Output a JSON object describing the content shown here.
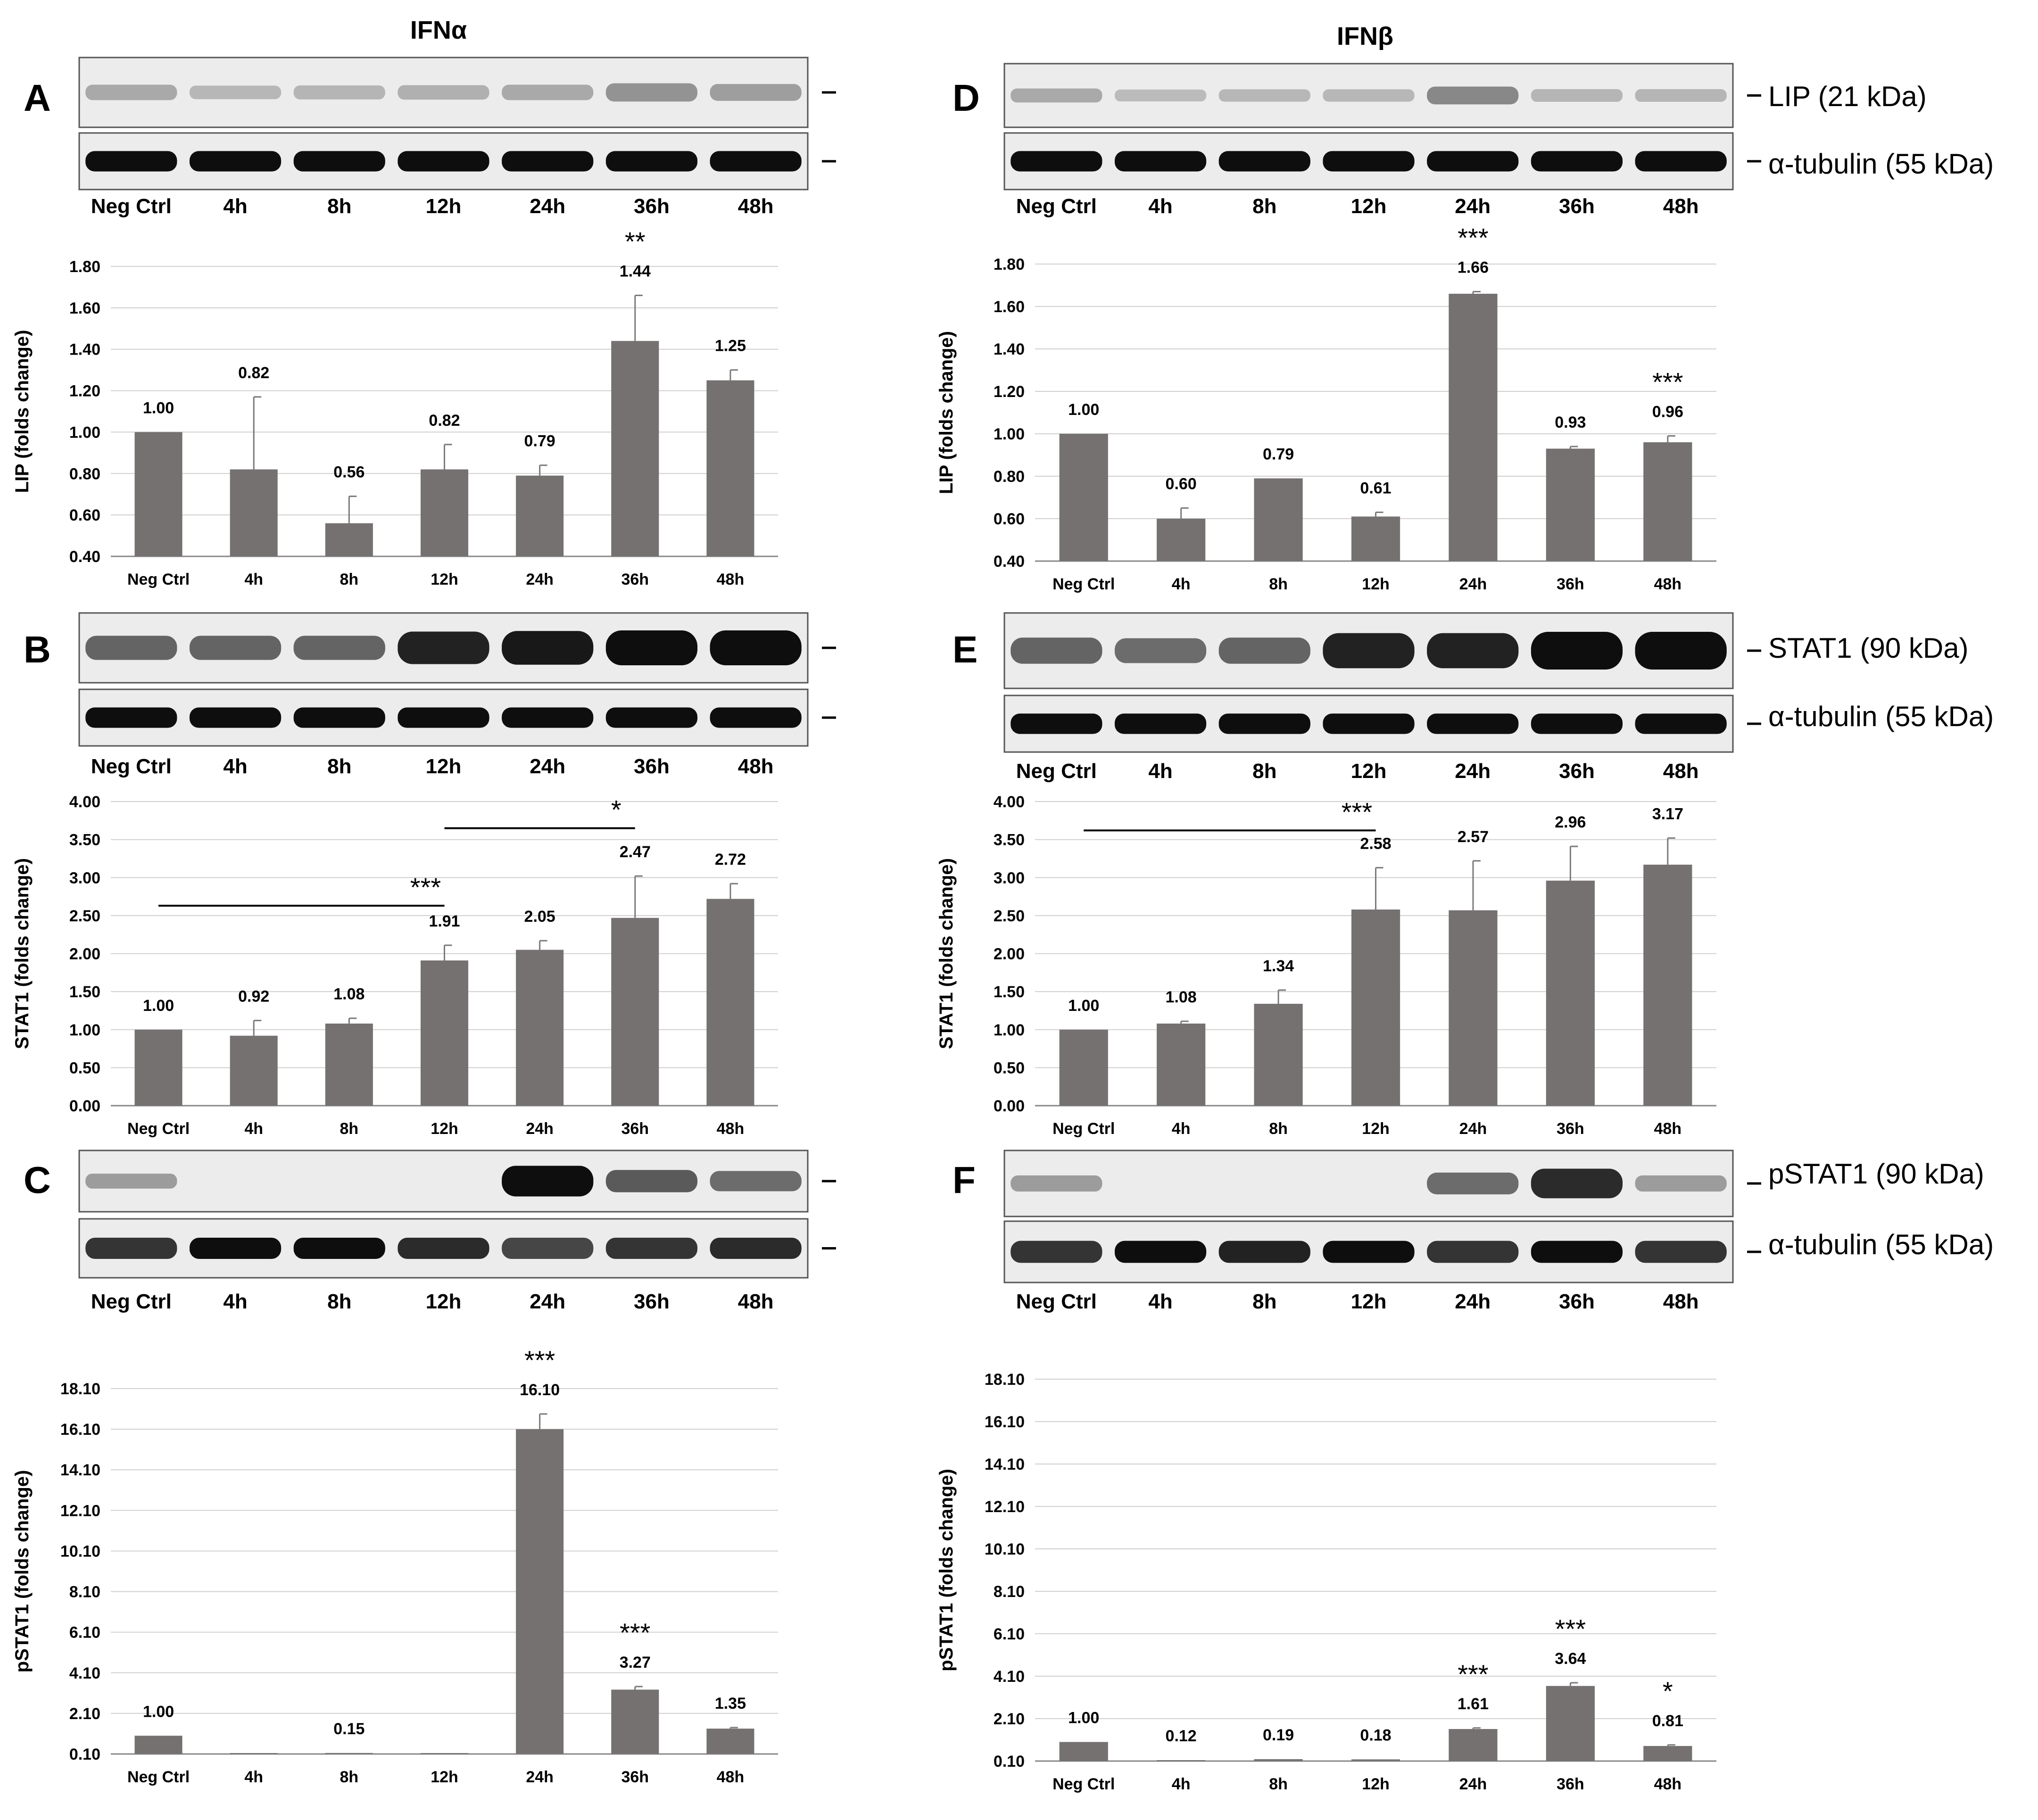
{
  "columns": [
    {
      "title": "IFNα",
      "panels": [
        "A",
        "B",
        "C"
      ]
    },
    {
      "title": "IFNβ",
      "panels": [
        "D",
        "E",
        "F"
      ]
    }
  ],
  "lane_labels": [
    "Neg Ctrl",
    "4h",
    "8h",
    "12h",
    "24h",
    "36h",
    "48h"
  ],
  "blot_labels": {
    "lip": "LIP (21 kDa)",
    "stat1": "STAT1 (90 kDa)",
    "pstat1": "pSTAT1 (90 kDa)",
    "tubulin": "α-tubulin (55 kDa)"
  },
  "colors": {
    "bar": "#757171",
    "blot_bg": "#ececec",
    "band": "#0e0e0e",
    "axis": "#888888"
  },
  "icons": [
    "marker-dash-icon"
  ],
  "chart_data": [
    {
      "panel": "A",
      "type": "bar",
      "ylabel": "LIP (folds change)",
      "categories": [
        "Neg Ctrl",
        "4h",
        "8h",
        "12h",
        "24h",
        "36h",
        "48h"
      ],
      "values": [
        1.0,
        0.82,
        0.56,
        0.82,
        0.79,
        1.44,
        1.25
      ],
      "errors": [
        0,
        0.35,
        0.13,
        0.12,
        0.05,
        0.22,
        0.05
      ],
      "value_labels": [
        "1.00",
        "0.82",
        "0.56",
        "0.82",
        "0.79",
        "1.44",
        "1.25"
      ],
      "ylim": [
        0.4,
        1.8
      ],
      "yticks": [
        "0.40",
        "0.60",
        "0.80",
        "1.00",
        "1.20",
        "1.40",
        "1.60",
        "1.80"
      ],
      "significance": [
        {
          "category": "36h",
          "label": "**"
        }
      ],
      "brackets": []
    },
    {
      "panel": "B",
      "type": "bar",
      "ylabel": "STAT1 (folds change)",
      "categories": [
        "Neg Ctrl",
        "4h",
        "8h",
        "12h",
        "24h",
        "36h",
        "48h"
      ],
      "values": [
        1.0,
        0.92,
        1.08,
        1.91,
        2.05,
        2.47,
        2.72
      ],
      "errors": [
        0,
        0.2,
        0.07,
        0.2,
        0.12,
        0.55,
        0.2
      ],
      "value_labels": [
        "1.00",
        "0.92",
        "1.08",
        "1.91",
        "2.05",
        "2.47",
        "2.72"
      ],
      "ylim": [
        0.0,
        4.0
      ],
      "yticks": [
        "0.00",
        "0.50",
        "1.00",
        "1.50",
        "2.00",
        "2.50",
        "3.00",
        "3.50",
        "4.00"
      ],
      "significance": [],
      "brackets": [
        {
          "from": "Neg Ctrl",
          "to": "12h",
          "y": 2.63,
          "label": "***"
        },
        {
          "from": "12h",
          "to": "36h",
          "y": 3.65,
          "label": "*"
        }
      ]
    },
    {
      "panel": "C",
      "type": "bar",
      "ylabel": "pSTAT1 (folds change)",
      "categories": [
        "Neg Ctrl",
        "4h",
        "8h",
        "12h",
        "24h",
        "36h",
        "48h"
      ],
      "values": [
        1.0,
        0.02,
        0.15,
        0.02,
        16.1,
        3.27,
        1.35
      ],
      "errors": [
        0,
        0,
        0,
        0,
        0.75,
        0.15,
        0.05
      ],
      "value_labels": [
        "1.00",
        "",
        "0.15",
        "",
        "16.10",
        "3.27",
        "1.35"
      ],
      "ylim": [
        0.1,
        18.1
      ],
      "yticks": [
        "0.10",
        "2.10",
        "4.10",
        "6.10",
        "8.10",
        "10.10",
        "12.10",
        "14.10",
        "16.10",
        "18.10"
      ],
      "significance": [
        {
          "category": "24h",
          "label": "***"
        },
        {
          "category": "36h",
          "label": "***"
        }
      ],
      "brackets": []
    },
    {
      "panel": "D",
      "type": "bar",
      "ylabel": "LIP (folds change)",
      "categories": [
        "Neg Ctrl",
        "4h",
        "8h",
        "12h",
        "24h",
        "36h",
        "48h"
      ],
      "values": [
        1.0,
        0.6,
        0.79,
        0.61,
        1.66,
        0.93,
        0.96
      ],
      "errors": [
        0,
        0.05,
        0,
        0.02,
        0.01,
        0.01,
        0.03
      ],
      "value_labels": [
        "1.00",
        "0.60",
        "0.79",
        "0.61",
        "1.66",
        "0.93",
        "0.96"
      ],
      "ylim": [
        0.4,
        1.8
      ],
      "yticks": [
        "0.40",
        "0.60",
        "0.80",
        "1.00",
        "1.20",
        "1.40",
        "1.60",
        "1.80"
      ],
      "significance": [
        {
          "category": "24h",
          "label": "***"
        },
        {
          "category": "48h",
          "label": "***"
        }
      ],
      "brackets": []
    },
    {
      "panel": "E",
      "type": "bar",
      "ylabel": "STAT1 (folds change)",
      "categories": [
        "Neg Ctrl",
        "4h",
        "8h",
        "12h",
        "24h",
        "36h",
        "48h"
      ],
      "values": [
        1.0,
        1.08,
        1.34,
        2.58,
        2.57,
        2.96,
        3.17
      ],
      "errors": [
        0,
        0.03,
        0.18,
        0.55,
        0.65,
        0.45,
        0.35
      ],
      "value_labels": [
        "1.00",
        "1.08",
        "1.34",
        "2.58",
        "2.57",
        "2.96",
        "3.17"
      ],
      "ylim": [
        0.0,
        4.0
      ],
      "yticks": [
        "0.00",
        "0.50",
        "1.00",
        "1.50",
        "2.00",
        "2.50",
        "3.00",
        "3.50",
        "4.00"
      ],
      "significance": [],
      "brackets": [
        {
          "from": "Neg Ctrl",
          "to": "12h",
          "y": 3.62,
          "label": "***"
        }
      ]
    },
    {
      "panel": "F",
      "type": "bar",
      "ylabel": "pSTAT1 (folds change)",
      "categories": [
        "Neg Ctrl",
        "4h",
        "8h",
        "12h",
        "24h",
        "36h",
        "48h"
      ],
      "values": [
        1.0,
        0.12,
        0.19,
        0.18,
        1.61,
        3.64,
        0.81
      ],
      "errors": [
        0,
        0,
        0,
        0,
        0.05,
        0.15,
        0.05
      ],
      "value_labels": [
        "1.00",
        "0.12",
        "0.19",
        "0.18",
        "1.61",
        "3.64",
        "0.81"
      ],
      "ylim": [
        0.1,
        18.1
      ],
      "yticks": [
        "0.10",
        "2.10",
        "4.10",
        "6.10",
        "8.10",
        "10.10",
        "12.10",
        "14.10",
        "16.10",
        "18.10"
      ],
      "significance": [
        {
          "category": "24h",
          "label": "***"
        },
        {
          "category": "36h",
          "label": "***"
        },
        {
          "category": "48h",
          "label": "*"
        }
      ],
      "brackets": []
    }
  ],
  "blot_data": [
    {
      "panel": "A",
      "target": "LIP",
      "intensity": [
        0.18,
        0.1,
        0.12,
        0.14,
        0.18,
        0.3,
        0.24
      ]
    },
    {
      "panel": "A",
      "target": "tubulin",
      "intensity": [
        1,
        1,
        1,
        1,
        1,
        1,
        1
      ]
    },
    {
      "panel": "B",
      "target": "STAT1",
      "intensity": [
        0.55,
        0.55,
        0.55,
        0.9,
        0.95,
        1,
        1
      ]
    },
    {
      "panel": "B",
      "target": "tubulin",
      "intensity": [
        1,
        1,
        1,
        1,
        1,
        1,
        1
      ]
    },
    {
      "panel": "C",
      "target": "pSTAT1",
      "intensity": [
        0.25,
        0,
        0,
        0,
        1,
        0.6,
        0.5
      ]
    },
    {
      "panel": "C",
      "target": "tubulin",
      "intensity": [
        0.8,
        1,
        1,
        0.85,
        0.7,
        0.8,
        0.85
      ]
    },
    {
      "panel": "D",
      "target": "LIP",
      "intensity": [
        0.18,
        0.08,
        0.1,
        0.1,
        0.35,
        0.12,
        0.12
      ]
    },
    {
      "panel": "D",
      "target": "tubulin",
      "intensity": [
        1,
        1,
        1,
        1,
        1,
        1,
        1
      ]
    },
    {
      "panel": "E",
      "target": "STAT1",
      "intensity": [
        0.55,
        0.5,
        0.55,
        0.9,
        0.9,
        1,
        1
      ]
    },
    {
      "panel": "E",
      "target": "tubulin",
      "intensity": [
        1,
        1,
        1,
        1,
        1,
        1,
        1
      ]
    },
    {
      "panel": "F",
      "target": "pSTAT1",
      "intensity": [
        0.25,
        0,
        0,
        0,
        0.5,
        0.85,
        0.25
      ]
    },
    {
      "panel": "F",
      "target": "tubulin",
      "intensity": [
        0.8,
        1,
        0.9,
        1,
        0.8,
        1,
        0.8
      ]
    }
  ]
}
